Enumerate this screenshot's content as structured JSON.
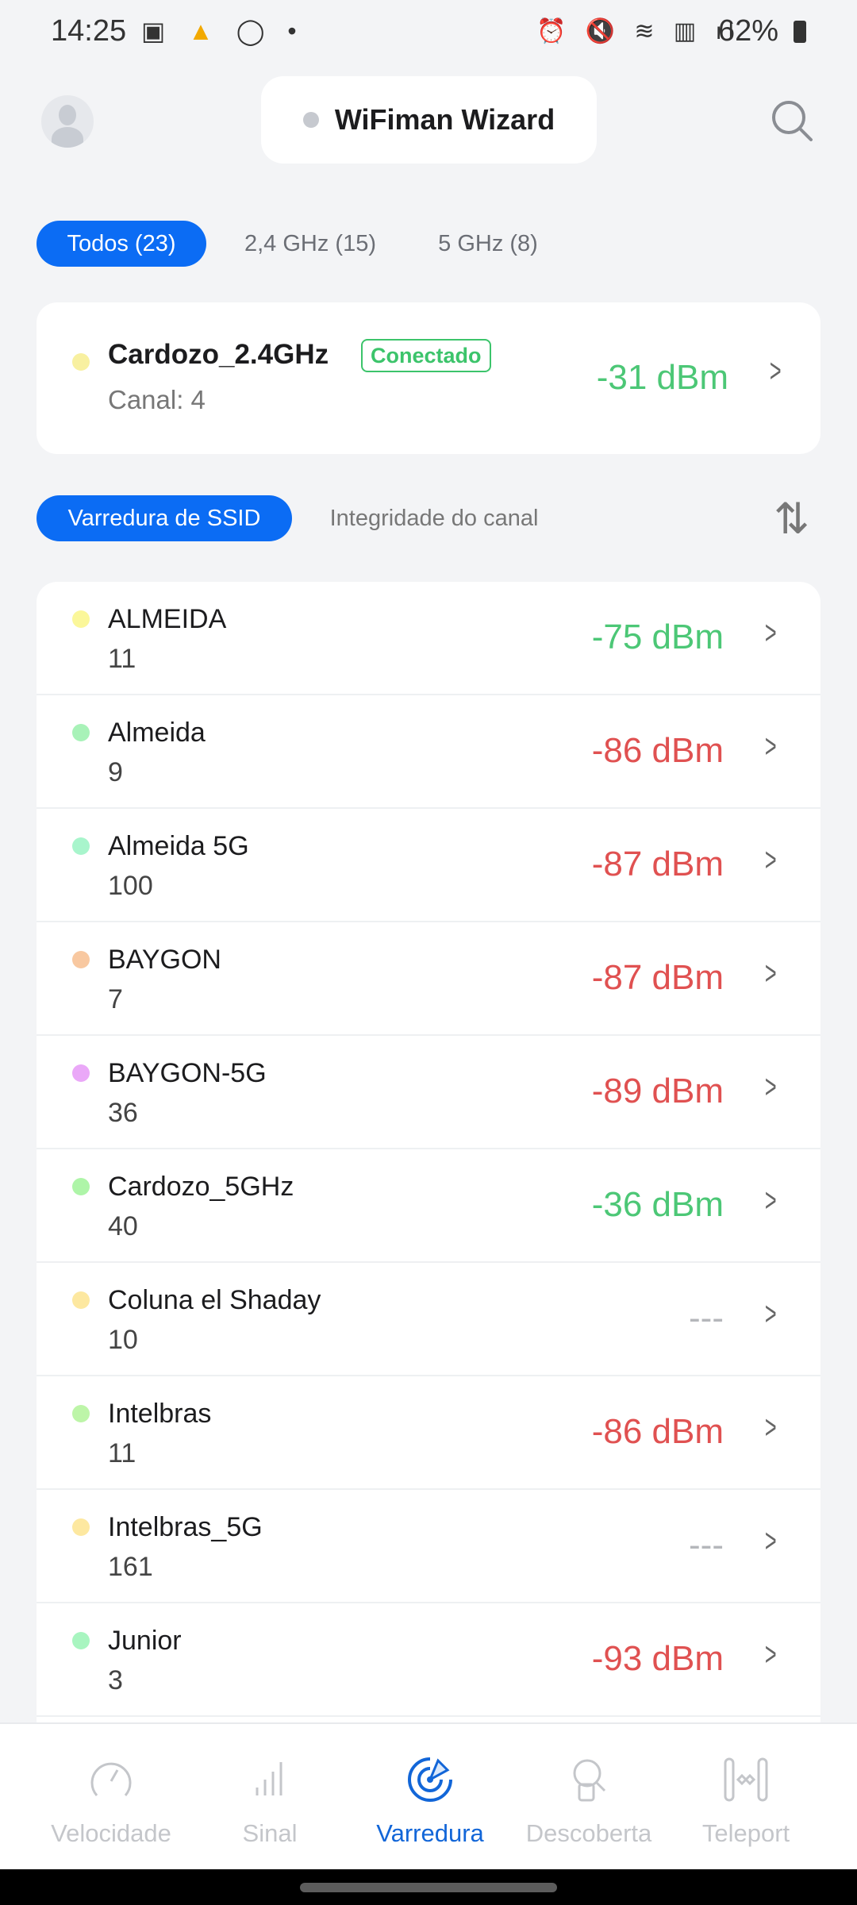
{
  "status_bar": {
    "time": "14:25",
    "battery": "62%",
    "icons": [
      "gallery-icon",
      "helmet-app-icon",
      "whatsapp-icon",
      "dot-icon",
      "alarm-icon",
      "mute-icon",
      "wifi-icon",
      "volte-icon",
      "signal-icon",
      "battery-icon"
    ]
  },
  "header": {
    "title": "WiFiman Wizard",
    "status_dot_color": "#c6c9cf"
  },
  "filter_tabs": [
    {
      "label": "Todos (23)",
      "active": true
    },
    {
      "label": "2,4 GHz (15)",
      "active": false
    },
    {
      "label": "5 GHz (8)",
      "active": false
    }
  ],
  "connected": {
    "ssid": "Cardozo_2.4GHz",
    "badge": "Conectado",
    "channel": "Canal: 4",
    "signal": "-31 dBm",
    "dot_color": "#f8f0a0"
  },
  "sub_tabs": [
    {
      "label": "Varredura de SSID",
      "active": true
    },
    {
      "label": "Integridade do canal",
      "active": false
    }
  ],
  "colors": {
    "accent": "#0b6cf4",
    "good": "#4cc776",
    "bad": "#e05151",
    "none": "#b5b7bb"
  },
  "networks": [
    {
      "ssid": "ALMEIDA",
      "channel": "11",
      "signal": "-75 dBm",
      "quality": "good",
      "dot": "#fbf79a"
    },
    {
      "ssid": "Almeida",
      "channel": "9",
      "signal": "-86 dBm",
      "quality": "bad",
      "dot": "#a8f2b8"
    },
    {
      "ssid": "Almeida 5G",
      "channel": "100",
      "signal": "-87 dBm",
      "quality": "bad",
      "dot": "#a8f5cc"
    },
    {
      "ssid": "BAYGON",
      "channel": "7",
      "signal": "-87 dBm",
      "quality": "bad",
      "dot": "#f8c8a0"
    },
    {
      "ssid": "BAYGON-5G",
      "channel": "36",
      "signal": "-89 dBm",
      "quality": "bad",
      "dot": "#eaa8f8"
    },
    {
      "ssid": "Cardozo_5GHz",
      "channel": "40",
      "signal": "-36 dBm",
      "quality": "good",
      "dot": "#aef5a8"
    },
    {
      "ssid": "Coluna el Shaday",
      "channel": "10",
      "signal": "---",
      "quality": "none",
      "dot": "#fde8a0"
    },
    {
      "ssid": "Intelbras",
      "channel": "11",
      "signal": "-86 dBm",
      "quality": "bad",
      "dot": "#bdf5a8"
    },
    {
      "ssid": "Intelbras_5G",
      "channel": "161",
      "signal": "---",
      "quality": "none",
      "dot": "#fde8a0"
    },
    {
      "ssid": "Junior",
      "channel": "3",
      "signal": "-93 dBm",
      "quality": "bad",
      "dot": "#a8f5c0"
    }
  ],
  "bottom_nav": [
    {
      "label": "Velocidade",
      "active": false
    },
    {
      "label": "Sinal",
      "active": false
    },
    {
      "label": "Varredura",
      "active": true
    },
    {
      "label": "Descoberta",
      "active": false
    },
    {
      "label": "Teleport",
      "active": false
    }
  ]
}
